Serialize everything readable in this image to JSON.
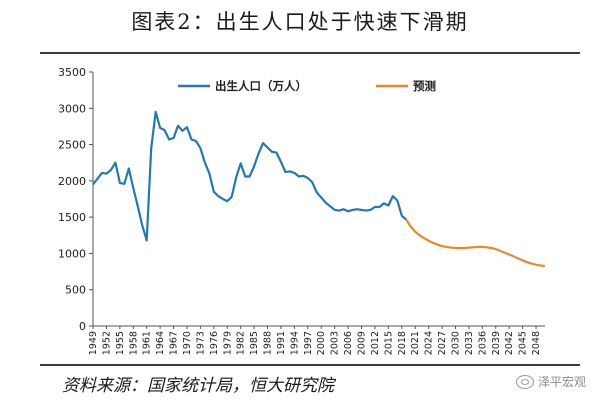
{
  "title": "图表2：出生人口处于快速下滑期",
  "source": "资料来源：国家统计局，恒大研究院",
  "watermark": "泽平宏观",
  "watermark_icon": "chat-bubble-icon",
  "chart_data": {
    "type": "line",
    "legend_position": "top",
    "grid": false,
    "xlim": [
      1949,
      2050
    ],
    "ylim": [
      0,
      3500
    ],
    "y_ticks": [
      0,
      500,
      1000,
      1500,
      2000,
      2500,
      3000,
      3500
    ],
    "x_tick_labels": [
      "1949",
      "1952",
      "1955",
      "1958",
      "1961",
      "1964",
      "1967",
      "1970",
      "1973",
      "1976",
      "1979",
      "1982",
      "1985",
      "1988",
      "1991",
      "1994",
      "1997",
      "2000",
      "2003",
      "2006",
      "2009",
      "2012",
      "2015",
      "2018",
      "2021",
      "2024",
      "2027",
      "2030",
      "2033",
      "2036",
      "2039",
      "2042",
      "2045",
      "2048"
    ],
    "series": [
      {
        "name": "出生人口（万人）",
        "color": "#2478b4",
        "x": [
          1949,
          1950,
          1951,
          1952,
          1953,
          1954,
          1955,
          1956,
          1957,
          1958,
          1959,
          1960,
          1961,
          1962,
          1963,
          1964,
          1965,
          1966,
          1967,
          1968,
          1969,
          1970,
          1971,
          1972,
          1973,
          1974,
          1975,
          1976,
          1977,
          1978,
          1979,
          1980,
          1981,
          1982,
          1983,
          1984,
          1985,
          1986,
          1987,
          1988,
          1989,
          1990,
          1991,
          1992,
          1993,
          1994,
          1995,
          1996,
          1997,
          1998,
          1999,
          2000,
          2001,
          2002,
          2003,
          2004,
          2005,
          2006,
          2007,
          2008,
          2009,
          2010,
          2011,
          2012,
          2013,
          2014,
          2015,
          2016,
          2017,
          2018,
          2019
        ],
        "y": [
          1950,
          2030,
          2110,
          2100,
          2150,
          2250,
          1970,
          1960,
          2170,
          1900,
          1650,
          1390,
          1180,
          2450,
          2950,
          2730,
          2700,
          2570,
          2590,
          2760,
          2690,
          2740,
          2570,
          2550,
          2450,
          2250,
          2100,
          1850,
          1790,
          1750,
          1720,
          1780,
          2050,
          2240,
          2060,
          2060,
          2200,
          2380,
          2520,
          2460,
          2400,
          2390,
          2260,
          2120,
          2130,
          2110,
          2060,
          2070,
          2040,
          1980,
          1840,
          1770,
          1700,
          1650,
          1600,
          1590,
          1610,
          1580,
          1600,
          1610,
          1600,
          1590,
          1600,
          1640,
          1640,
          1690,
          1660,
          1790,
          1730,
          1520,
          1465
        ]
      },
      {
        "name": "预测",
        "color": "#e8892b",
        "x": [
          2019,
          2020,
          2021,
          2022,
          2023,
          2024,
          2025,
          2026,
          2027,
          2028,
          2029,
          2030,
          2031,
          2032,
          2033,
          2034,
          2035,
          2036,
          2037,
          2038,
          2039,
          2040,
          2041,
          2042,
          2043,
          2044,
          2045,
          2046,
          2047,
          2048,
          2049,
          2050
        ],
        "y": [
          1465,
          1370,
          1300,
          1250,
          1210,
          1175,
          1145,
          1120,
          1100,
          1090,
          1080,
          1075,
          1075,
          1075,
          1080,
          1085,
          1090,
          1090,
          1085,
          1075,
          1060,
          1035,
          1010,
          985,
          960,
          930,
          905,
          880,
          860,
          845,
          835,
          825
        ]
      }
    ]
  }
}
